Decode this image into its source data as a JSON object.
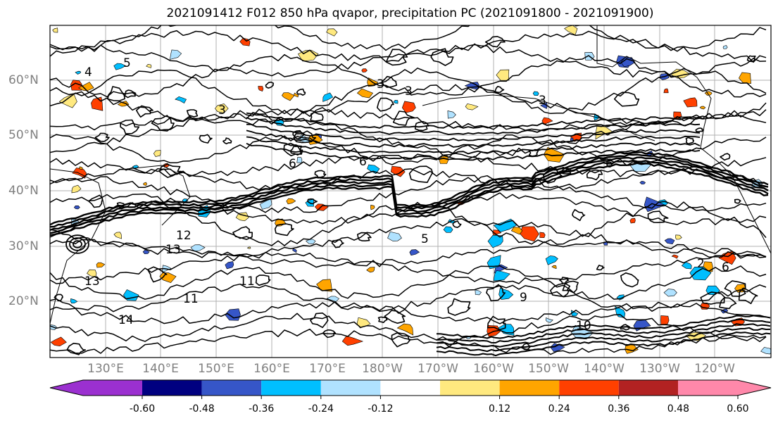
{
  "title": "2021091412 F012 850 hPa qvapor, precipitation PC (2021091800 - 2021091900)",
  "latitude_labels": [
    "60°N",
    "50°N",
    "40°N",
    "30°N",
    "20°N"
  ],
  "longitude_labels": [
    "130°E",
    "140°E",
    "150°E",
    "160°E",
    "170°E",
    "180°W",
    "170°W",
    "160°W",
    "150°W",
    "140°W",
    "130°W",
    "120°W"
  ],
  "colorbar": {
    "tick_labels": [
      "-0.60",
      "-0.48",
      "-0.36",
      "-0.24",
      "-0.12",
      "0.12",
      "0.24",
      "0.36",
      "0.48",
      "0.60"
    ],
    "bins": [
      {
        "range": "< -0.60",
        "color": "#9b30d0"
      },
      {
        "range": "-0.60 to -0.48",
        "color": "#000080"
      },
      {
        "range": "-0.48 to -0.36",
        "color": "#3656c8"
      },
      {
        "range": "-0.36 to -0.24",
        "color": "#00bfff"
      },
      {
        "range": "-0.24 to -0.12",
        "color": "#b0e2ff"
      },
      {
        "range": "-0.12 to 0.12",
        "color": "#ffffff"
      },
      {
        "range": "0.12 to 0.24",
        "color": "#ffe97f"
      },
      {
        "range": "0.24 to 0.36",
        "color": "#ffa500"
      },
      {
        "range": "0.36 to 0.48",
        "color": "#ff4000"
      },
      {
        "range": "0.48 to 0.60",
        "color": "#b22222"
      },
      {
        "range": "> 0.60",
        "color": "#ff88aa"
      }
    ]
  },
  "contour_labels": [
    "5",
    "4",
    "3",
    "3",
    "3",
    "3",
    "6",
    "6",
    "6",
    "13",
    "12",
    "11",
    "11",
    "13",
    "9",
    "10",
    "2",
    "6",
    "5",
    "14"
  ],
  "colors": {
    "frame": "#000000",
    "contour": "#000000",
    "gridline": "#b0b0b0",
    "coastline": "#000000",
    "tick_label": "#808080"
  }
}
